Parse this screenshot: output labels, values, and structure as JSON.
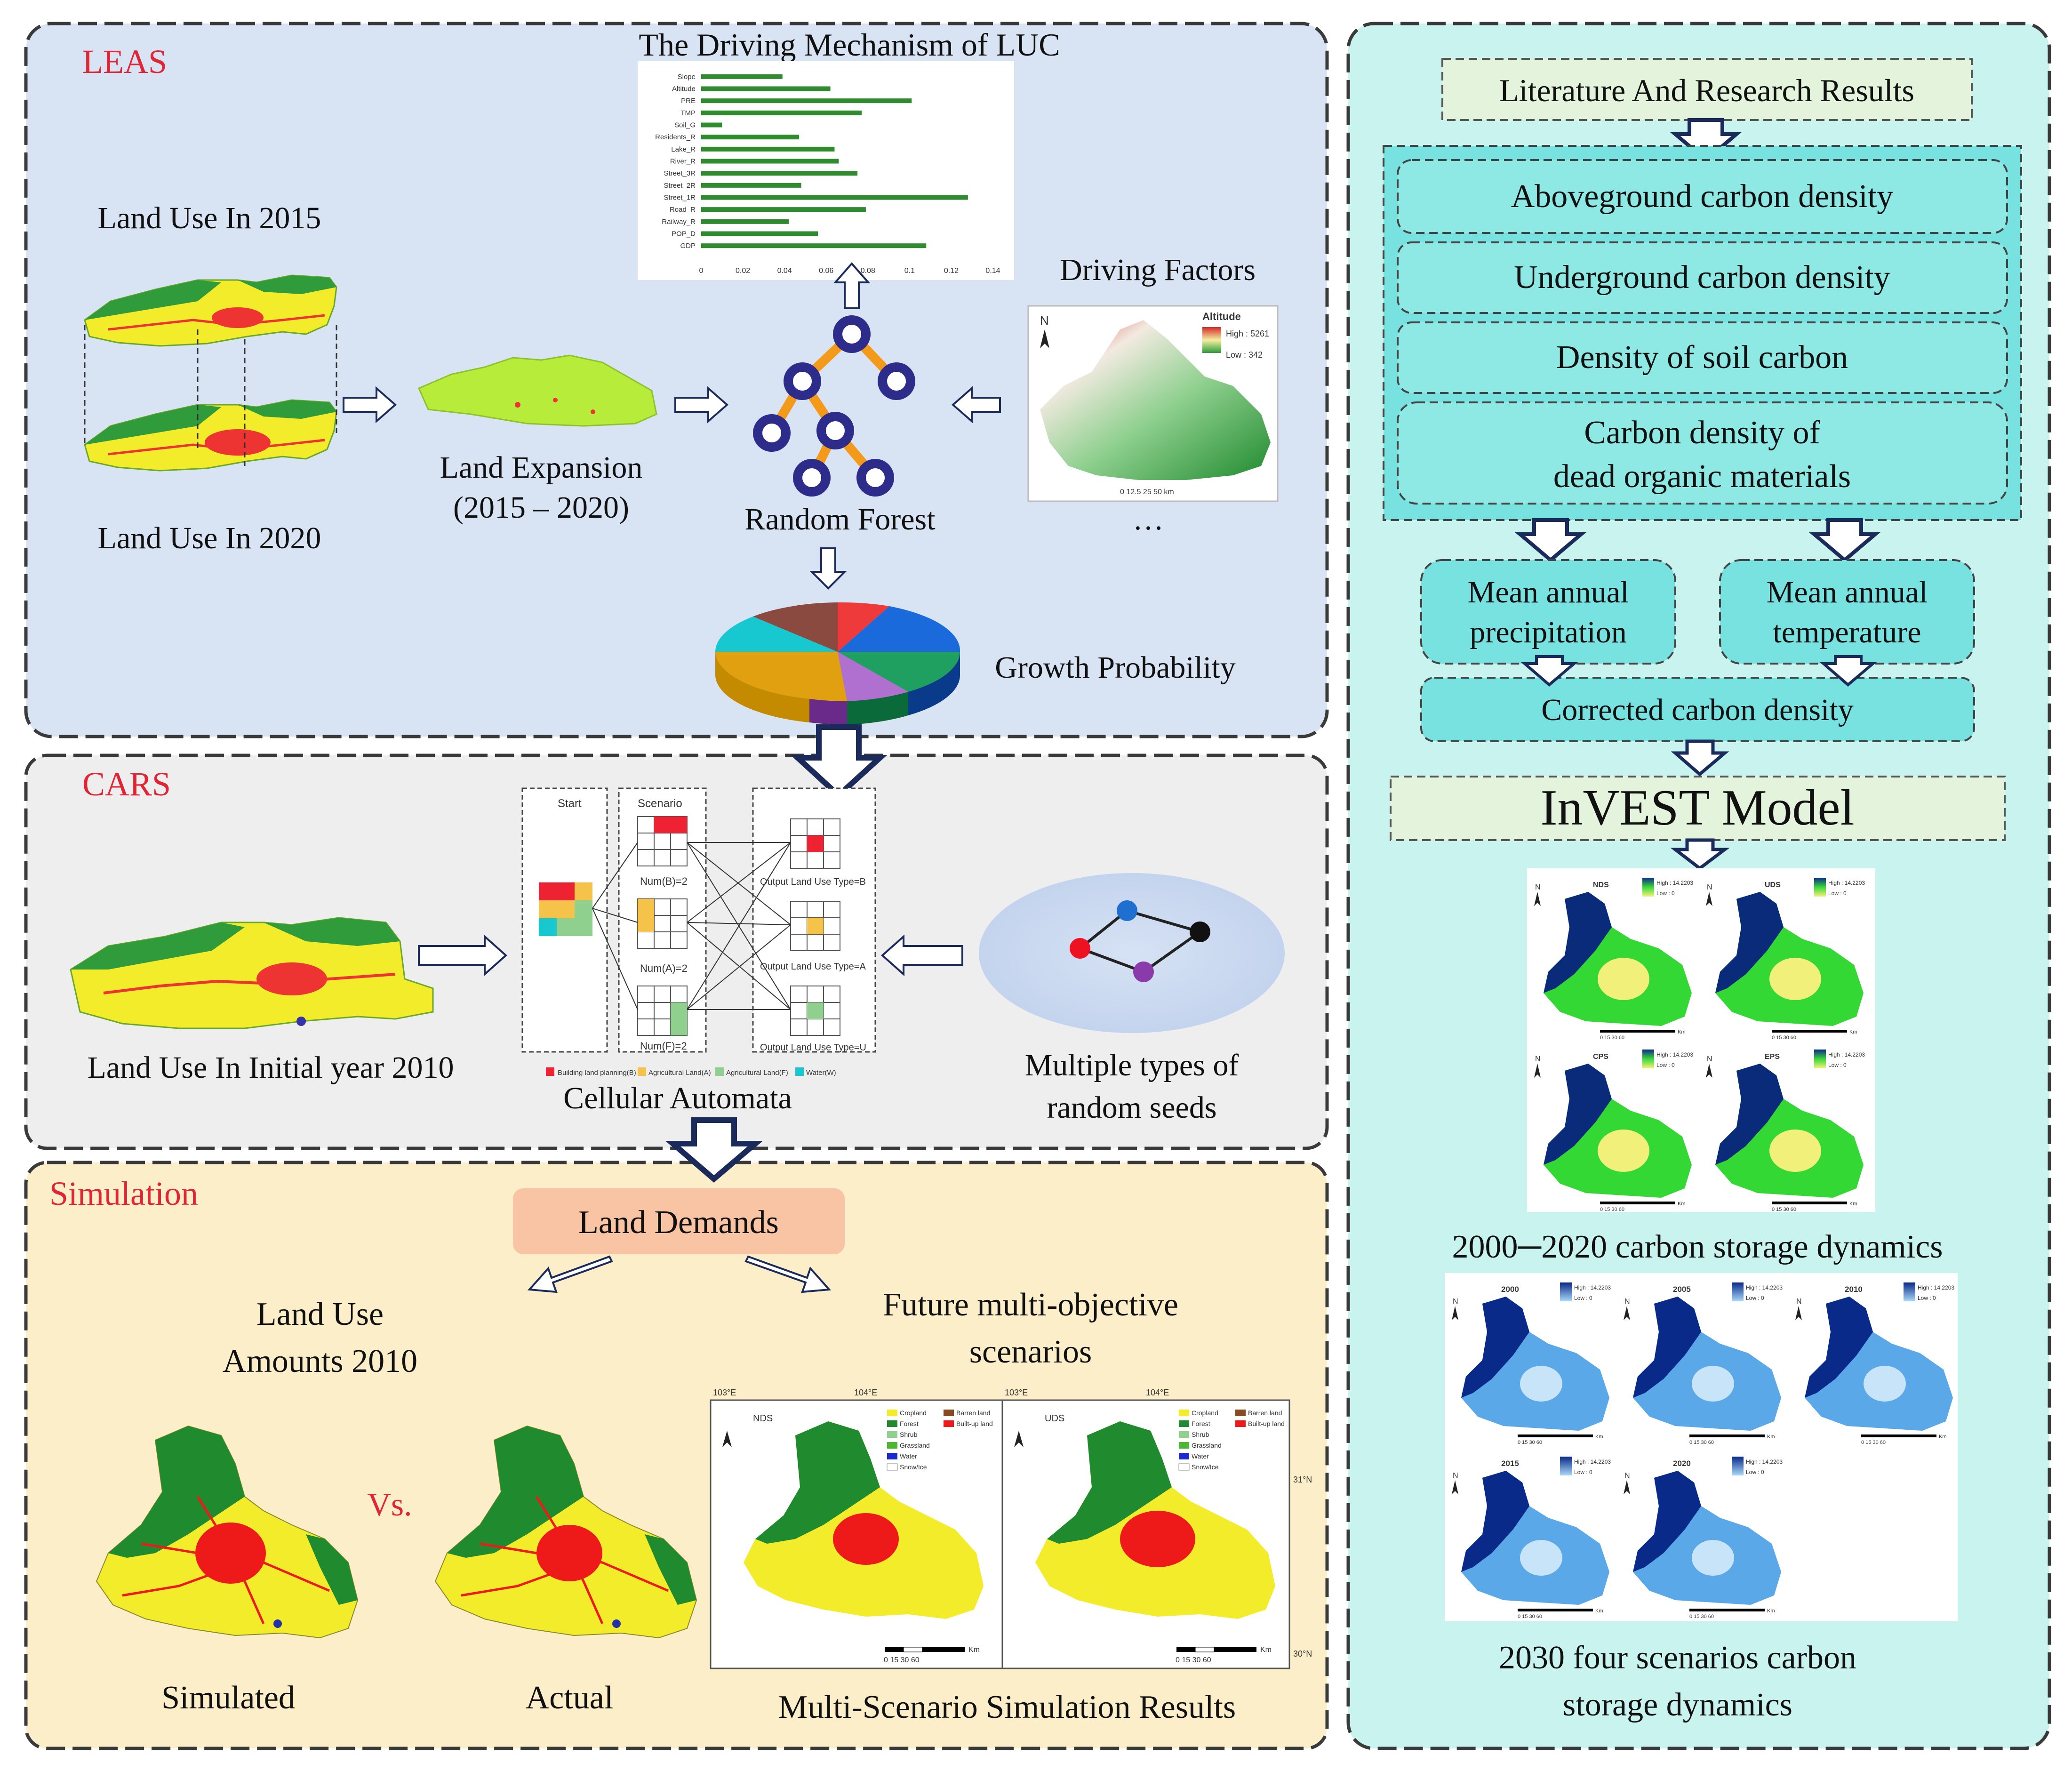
{
  "leas": {
    "section_label": "LEAS",
    "chart_title": "The Driving Mechanism of LUC",
    "land_use_2015": "Land Use In 2015",
    "land_use_2020": "Land Use In 2020",
    "land_expansion_line1": "Land Expansion",
    "land_expansion_line2": "(2015 – 2020)",
    "random_forest": "Random Forest",
    "driving_factors": "Driving Factors",
    "ellipsis": "…",
    "growth_probability": "Growth Probability",
    "altitude_legend": {
      "title": "Altitude",
      "high": "High : 5261",
      "low": "Low : 342",
      "north": "N",
      "scale": "0  12.5  25     50 km"
    }
  },
  "chart_data": {
    "type": "bar",
    "title": "The Driving Mechanism of LUC",
    "orientation": "horizontal",
    "categories": [
      "Slope",
      "Altitude",
      "PRE",
      "TMP",
      "Soil_G",
      "Residents_R",
      "Lake_R",
      "River_R",
      "Street_3R",
      "Street_2R",
      "Street_1R",
      "Road_R",
      "Railway_R",
      "POP_D",
      "GDP"
    ],
    "values": [
      0.039,
      0.062,
      0.101,
      0.077,
      0.01,
      0.047,
      0.064,
      0.066,
      0.075,
      0.048,
      0.128,
      0.079,
      0.042,
      0.056,
      0.108
    ],
    "xticks": [
      "0",
      "0.02",
      "0.04",
      "0.06",
      "0.08",
      "0.1",
      "0.12",
      "0.14"
    ],
    "xlim": [
      0,
      0.14
    ],
    "color": "#2e8b2e"
  },
  "cars": {
    "section_label": "CARS",
    "land_use_initial": "Land Use In Initial year 2010",
    "cellular_automata": "Cellular Automata",
    "random_seeds_line1": "Multiple types of",
    "random_seeds_line2": "random seeds",
    "ca": {
      "start": "Start",
      "scenario": "Scenario",
      "num_b": "Num(B)=2",
      "num_a": "Num(A)=2",
      "num_f": "Num(F)=2",
      "out_b": "Output Land Use Type=B",
      "out_a": "Output Land Use Type=A",
      "out_u": "Output Land Use Type=U",
      "legend": [
        "Building land planning(B)",
        "Agricultural Land(A)",
        "Agricultural Land(F)",
        "Water(W)"
      ]
    }
  },
  "simulation": {
    "section_label": "Simulation",
    "land_demands": "Land Demands",
    "land_use_amounts_line1": "Land Use",
    "land_use_amounts_line2": "Amounts 2010",
    "future_line1": "Future multi-objective",
    "future_line2": "scenarios",
    "vs": "Vs.",
    "simulated": "Simulated",
    "actual": "Actual",
    "multi_results": "Multi-Scenario Simulation Results",
    "map_labels": {
      "nds": "NDS",
      "uds": "UDS",
      "lon1": "103°E",
      "lon2": "104°E",
      "lat1": "31°N",
      "lat2": "30°N",
      "km": "Km",
      "scale": "0  15  30       60"
    },
    "legend": [
      "Cropland",
      "Forest",
      "Shrub",
      "Grassland",
      "Water",
      "Snow/Ice",
      "Barren land",
      "Built-up land"
    ]
  },
  "carbon": {
    "literature": "Literature And Research Results",
    "aboveground": "Aboveground carbon density",
    "underground": "Underground carbon density",
    "soil": "Density of soil carbon",
    "dead_line1": "Carbon density of",
    "dead_line2": "dead organic materials",
    "precip_line1": "Mean annual",
    "precip_line2": "precipitation",
    "temp_line1": "Mean annual",
    "temp_line2": "temperature",
    "corrected": "Corrected carbon density",
    "invest": "InVEST Model",
    "scenario_maps": [
      "NDS",
      "UDS",
      "CPS",
      "EPS"
    ],
    "scenario_high": "High : 14.2203",
    "scenario_low": "Low : 0",
    "dynamics_2030_line1": "2030 four scenarios carbon",
    "dynamics_2030_line2": "storage dynamics",
    "year_maps": [
      "2000",
      "2005",
      "2010",
      "2015",
      "2020"
    ],
    "dynamics_2000_2020": "2000─2020 carbon storage dynamics",
    "north": "N",
    "scale": "0  15  30      60",
    "km": "Km"
  }
}
